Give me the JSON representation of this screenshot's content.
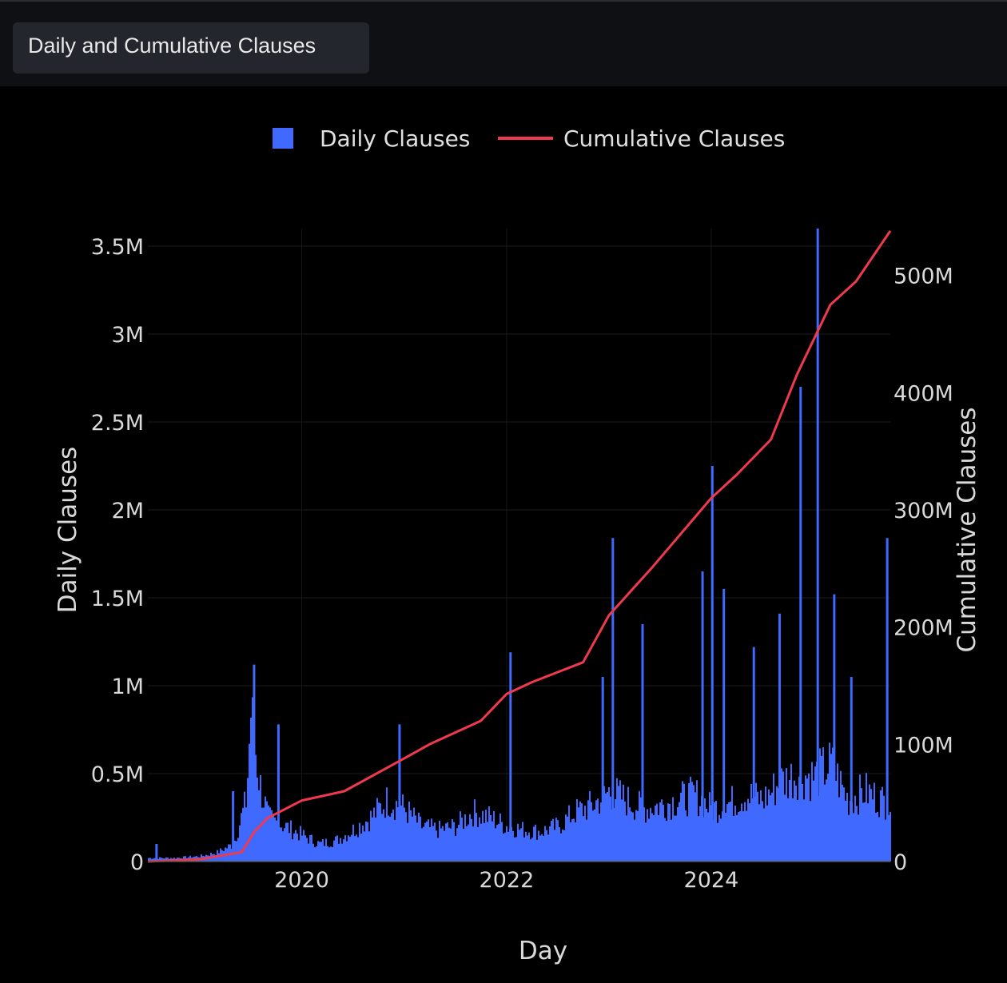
{
  "tab": {
    "label": "Daily and Cumulative Clauses"
  },
  "chart_data": {
    "type": "bar",
    "title": "",
    "xlabel": "Day",
    "ylabel": "Daily Clauses",
    "y2label": "Cumulative Clauses",
    "legend": [
      {
        "name": "Daily Clauses",
        "kind": "bar",
        "color": "#3f69ff"
      },
      {
        "name": "Cumulative Clauses",
        "kind": "line",
        "color": "#ef3a4e"
      }
    ],
    "legend_position": "top-center",
    "grid": true,
    "x_ticks": [
      "2020",
      "2022",
      "2024"
    ],
    "y_ticks": [
      "0",
      "0.5M",
      "1M",
      "1.5M",
      "2M",
      "2.5M",
      "3M",
      "3.5M"
    ],
    "y2_ticks": [
      "0",
      "100M",
      "200M",
      "300M",
      "400M",
      "500M"
    ],
    "xlim": [
      "2018-07-01",
      "2025-10-01"
    ],
    "ylim": [
      0,
      3.6
    ],
    "y2lim": [
      0,
      540
    ],
    "y_unit": "M",
    "daily_series": {
      "name": "Daily Clauses",
      "color": "#3f69ff",
      "x": [
        "2018-07-01",
        "2018-10-01",
        "2019-01-01",
        "2019-03-01",
        "2019-05-01",
        "2019-06-15",
        "2019-07-01",
        "2019-08-01",
        "2019-09-01",
        "2019-11-01",
        "2020-01-01",
        "2020-03-01",
        "2020-05-01",
        "2020-07-01",
        "2020-09-01",
        "2020-11-01",
        "2021-01-01",
        "2021-03-01",
        "2021-05-01",
        "2021-07-01",
        "2021-09-01",
        "2021-11-01",
        "2022-01-01",
        "2022-03-01",
        "2022-05-01",
        "2022-07-01",
        "2022-09-01",
        "2022-11-01",
        "2023-01-01",
        "2023-03-01",
        "2023-05-01",
        "2023-07-01",
        "2023-09-01",
        "2023-11-01",
        "2024-01-01",
        "2024-03-01",
        "2024-05-01",
        "2024-07-01",
        "2024-09-01",
        "2024-11-01",
        "2025-01-01",
        "2025-03-01",
        "2025-05-01",
        "2025-07-01",
        "2025-10-01"
      ],
      "values": [
        0.02,
        0.02,
        0.03,
        0.05,
        0.1,
        0.35,
        0.85,
        0.45,
        0.25,
        0.2,
        0.15,
        0.1,
        0.12,
        0.18,
        0.25,
        0.35,
        0.3,
        0.2,
        0.18,
        0.2,
        0.28,
        0.25,
        0.2,
        0.18,
        0.17,
        0.2,
        0.28,
        0.32,
        0.4,
        0.35,
        0.3,
        0.32,
        0.35,
        0.38,
        0.3,
        0.33,
        0.38,
        0.35,
        0.45,
        0.5,
        0.48,
        0.55,
        0.35,
        0.4,
        0.32
      ],
      "spikes": [
        {
          "x": "2018-08-01",
          "value": 0.1
        },
        {
          "x": "2019-05-01",
          "value": 0.4
        },
        {
          "x": "2019-07-15",
          "value": 1.12
        },
        {
          "x": "2019-10-10",
          "value": 0.78
        },
        {
          "x": "2020-12-15",
          "value": 0.78
        },
        {
          "x": "2022-01-15",
          "value": 1.19
        },
        {
          "x": "2022-12-10",
          "value": 1.05
        },
        {
          "x": "2023-01-15",
          "value": 1.84
        },
        {
          "x": "2023-05-01",
          "value": 1.35
        },
        {
          "x": "2024-01-05",
          "value": 2.25
        },
        {
          "x": "2023-12-01",
          "value": 1.65
        },
        {
          "x": "2024-02-15",
          "value": 1.55
        },
        {
          "x": "2024-06-01",
          "value": 1.22
        },
        {
          "x": "2024-09-01",
          "value": 1.41
        },
        {
          "x": "2024-11-15",
          "value": 2.7
        },
        {
          "x": "2025-01-15",
          "value": 3.6
        },
        {
          "x": "2025-03-15",
          "value": 1.52
        },
        {
          "x": "2025-05-15",
          "value": 1.05
        },
        {
          "x": "2025-09-20",
          "value": 1.84
        }
      ]
    },
    "cumulative_series": {
      "name": "Cumulative Clauses",
      "color": "#ef3a4e",
      "x": [
        "2018-07-01",
        "2019-01-01",
        "2019-06-01",
        "2019-07-15",
        "2019-09-01",
        "2020-01-01",
        "2020-06-01",
        "2021-01-01",
        "2021-04-01",
        "2021-10-01",
        "2022-01-01",
        "2022-04-01",
        "2022-10-01",
        "2023-01-01",
        "2023-06-01",
        "2024-01-01",
        "2024-04-01",
        "2024-08-01",
        "2024-11-01",
        "2025-03-01",
        "2025-06-01",
        "2025-10-01"
      ],
      "values": [
        0,
        2,
        8,
        25,
        37,
        52,
        60,
        88,
        100,
        120,
        143,
        153,
        170,
        210,
        250,
        310,
        330,
        360,
        415,
        475,
        495,
        538
      ]
    }
  }
}
